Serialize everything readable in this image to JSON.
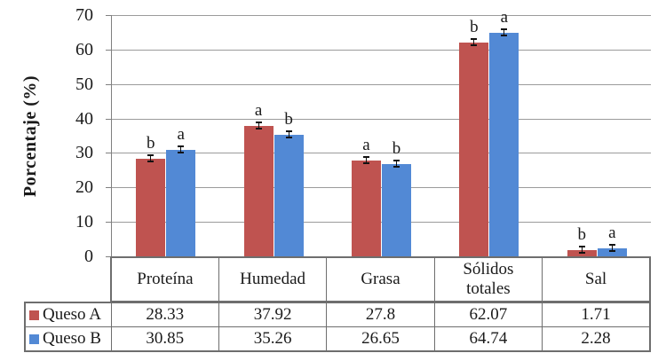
{
  "chart_data": {
    "type": "bar",
    "title": "",
    "ylabel": "Porcentaje (%)",
    "xlabel": "",
    "ylim": [
      0,
      70
    ],
    "yticks": [
      0,
      10,
      20,
      30,
      40,
      50,
      60,
      70
    ],
    "grid": true,
    "legend_position": "table-left",
    "data_table_shown": true,
    "categories": [
      "Proteína",
      "Humedad",
      "Grasa",
      "Sólidos totales",
      "Sal"
    ],
    "series": [
      {
        "name": "Queso A",
        "color": "#bf5350",
        "values": [
          28.33,
          37.92,
          27.8,
          62.07,
          1.71
        ],
        "sig_letters": [
          "b",
          "a",
          "a",
          "b",
          "b"
        ],
        "error_bars": true
      },
      {
        "name": "Queso B",
        "color": "#5289d5",
        "values": [
          30.85,
          35.26,
          26.65,
          64.74,
          2.28
        ],
        "sig_letters": [
          "a",
          "b",
          "b",
          "a",
          "a"
        ],
        "error_bars": true
      }
    ]
  },
  "colors": {
    "series_a": "#bf5350",
    "series_b": "#5289d5",
    "gridline": "#9b9b9b",
    "axis_line": "#808080",
    "table_border": "#6e6e6e",
    "text": "#1a1a1a",
    "background": "#ffffff"
  }
}
